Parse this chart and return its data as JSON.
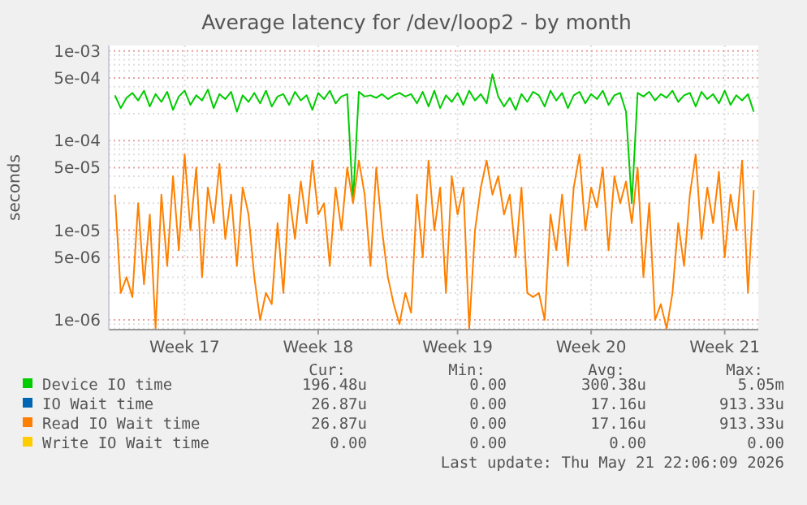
{
  "chart_data": {
    "type": "line",
    "title": "Average latency for /dev/loop2 - by month",
    "ylabel": "seconds",
    "log": "y",
    "grid": true,
    "legend": "bottom",
    "line_style": "solid",
    "ylim": [
      7.8e-07,
      0.00115
    ],
    "yticks": [
      {
        "value": 1e-06,
        "label": "1e-06"
      },
      {
        "value": 5e-06,
        "label": "5e-06"
      },
      {
        "value": 1e-05,
        "label": "1e-05"
      },
      {
        "value": 5e-05,
        "label": "5e-05"
      },
      {
        "value": 0.0001,
        "label": "1e-04"
      },
      {
        "value": 0.0005,
        "label": "5e-04"
      },
      {
        "value": 0.001,
        "label": "1e-03"
      }
    ],
    "categories": [
      null,
      null,
      null,
      null,
      null,
      null,
      null,
      null,
      null,
      null,
      null,
      null,
      "Week 17",
      null,
      null,
      null,
      null,
      null,
      null,
      null,
      null,
      null,
      null,
      null,
      null,
      null,
      null,
      null,
      null,
      null,
      null,
      null,
      null,
      null,
      null,
      "Week 18",
      null,
      null,
      null,
      null,
      null,
      null,
      null,
      null,
      null,
      null,
      null,
      null,
      null,
      null,
      null,
      null,
      null,
      null,
      null,
      null,
      null,
      null,
      null,
      "Week 19",
      null,
      null,
      null,
      null,
      null,
      null,
      null,
      null,
      null,
      null,
      null,
      null,
      null,
      null,
      null,
      null,
      null,
      null,
      null,
      null,
      null,
      null,
      "Week 20",
      null,
      null,
      null,
      null,
      null,
      null,
      null,
      null,
      null,
      null,
      null,
      null,
      null,
      null,
      null,
      null,
      null,
      null,
      null,
      null,
      null,
      null,
      "Week 21",
      null,
      null,
      null,
      null,
      null
    ],
    "series": [
      {
        "name": "Device IO time",
        "color": "#00cc00",
        "values": [
          0.00032,
          0.00023,
          0.0003,
          0.00034,
          0.00028,
          0.00036,
          0.00024,
          0.00033,
          0.00027,
          0.00035,
          0.00022,
          0.00031,
          0.00036,
          0.00025,
          0.00032,
          0.00028,
          0.00037,
          0.00023,
          0.00033,
          0.00029,
          0.00035,
          0.00021,
          0.00032,
          0.00027,
          0.00034,
          0.00026,
          0.00036,
          0.00024,
          0.00031,
          0.00033,
          0.00025,
          0.00035,
          0.00028,
          0.00032,
          0.00022,
          0.00034,
          0.00029,
          0.00036,
          0.00026,
          0.00031,
          0.00033,
          2.1e-05,
          0.00035,
          0.00031,
          0.00032,
          0.0003,
          0.00033,
          0.00029,
          0.00032,
          0.00034,
          0.00031,
          0.00033,
          0.00026,
          0.00035,
          0.00024,
          0.00036,
          0.00023,
          0.00032,
          0.00027,
          0.00034,
          0.00025,
          0.00036,
          0.00028,
          0.00033,
          0.00026,
          0.00055,
          0.00031,
          0.00024,
          0.0003,
          0.00022,
          0.00033,
          0.00027,
          0.00035,
          0.00032,
          0.00024,
          0.00036,
          0.00028,
          0.00034,
          0.00023,
          0.00032,
          0.00035,
          0.00026,
          0.00033,
          0.00029,
          0.00036,
          0.00025,
          0.00032,
          0.00034,
          0.00021,
          2e-05,
          0.00034,
          0.00031,
          0.00035,
          0.00028,
          0.00033,
          0.0003,
          0.00036,
          0.00027,
          0.00032,
          0.00034,
          0.00024,
          0.00035,
          0.00029,
          0.00033,
          0.00026,
          0.00036,
          0.00025,
          0.00032,
          0.00028,
          0.00033,
          0.00021
        ]
      },
      {
        "name": "IO Wait time",
        "color": "#0066b3",
        "values": [
          null,
          null,
          null,
          null,
          null,
          null,
          null,
          null,
          null,
          null,
          null,
          null,
          null,
          null,
          null,
          null,
          null,
          null,
          null,
          null,
          null,
          null,
          null,
          null,
          null,
          null,
          null,
          null,
          null,
          null,
          null,
          null,
          null,
          null,
          null,
          null,
          null,
          null,
          null,
          null,
          null,
          null,
          null,
          null,
          null,
          null,
          null,
          null,
          null,
          null,
          null,
          null,
          null,
          null,
          null,
          null,
          null,
          null,
          null,
          null,
          null,
          null,
          null,
          null,
          null,
          null,
          null,
          null,
          null,
          null,
          null,
          null,
          null,
          null,
          null,
          null,
          null,
          null,
          null,
          null,
          null,
          null,
          null,
          null,
          null,
          null,
          null,
          null,
          null,
          null,
          null,
          null,
          null,
          null,
          null,
          null,
          null,
          null,
          null,
          null,
          null,
          null,
          null,
          null,
          null,
          null,
          null,
          null,
          null,
          null,
          null
        ]
      },
      {
        "name": "Read IO Wait time",
        "color": "#ff8000",
        "values": [
          2.5e-05,
          2e-06,
          3e-06,
          1.8e-06,
          2e-05,
          2.5e-06,
          1.5e-05,
          8e-07,
          2.5e-05,
          4e-06,
          4e-05,
          6e-06,
          7e-05,
          1e-05,
          5e-05,
          3e-06,
          3e-05,
          1.2e-05,
          5.5e-05,
          8e-06,
          2.5e-05,
          4e-06,
          3e-05,
          1.5e-05,
          3e-06,
          1e-06,
          2e-06,
          1.5e-06,
          1.2e-05,
          2e-06,
          2.5e-05,
          8e-06,
          3.5e-05,
          1.2e-05,
          6e-05,
          1.5e-05,
          2e-05,
          4e-06,
          3e-05,
          1e-05,
          5e-05,
          2e-05,
          6e-05,
          2.5e-05,
          4e-06,
          5e-05,
          1e-05,
          3e-06,
          1.5e-06,
          9e-07,
          2e-06,
          1.2e-06,
          2.5e-05,
          5e-06,
          6e-05,
          1e-05,
          3e-05,
          2e-06,
          4e-05,
          1.5e-05,
          3e-05,
          8e-07,
          1e-05,
          3e-05,
          6e-05,
          2.5e-05,
          4e-05,
          1.5e-05,
          2.5e-05,
          5e-06,
          3e-05,
          2e-06,
          1.8e-06,
          2e-06,
          1e-06,
          1.5e-05,
          6e-06,
          2.5e-05,
          4e-06,
          3e-05,
          7e-05,
          1e-05,
          3e-05,
          1.8e-05,
          5e-05,
          6e-06,
          4e-05,
          2e-05,
          3.5e-05,
          1.2e-05,
          5e-05,
          3e-06,
          2e-05,
          1e-06,
          1.5e-06,
          8e-07,
          2e-06,
          1.2e-05,
          4e-06,
          2.5e-05,
          7e-05,
          8e-06,
          3e-05,
          1.2e-05,
          4.5e-05,
          5e-06,
          2.5e-05,
          1e-05,
          6e-05,
          2e-06,
          2.8e-05
        ]
      },
      {
        "name": "Write IO Wait time",
        "color": "#ffcc00",
        "values": [
          null,
          null,
          null,
          null,
          null,
          null,
          null,
          null,
          null,
          null,
          null,
          null,
          null,
          null,
          null,
          null,
          null,
          null,
          null,
          null,
          null,
          null,
          null,
          null,
          null,
          null,
          null,
          null,
          null,
          null,
          null,
          null,
          null,
          null,
          null,
          null,
          null,
          null,
          null,
          null,
          null,
          null,
          null,
          null,
          null,
          null,
          null,
          null,
          null,
          null,
          null,
          null,
          null,
          null,
          null,
          null,
          null,
          null,
          null,
          null,
          null,
          null,
          null,
          null,
          null,
          null,
          null,
          null,
          null,
          null,
          null,
          null,
          null,
          null,
          null,
          null,
          null,
          null,
          null,
          null,
          null,
          null,
          null,
          null,
          null,
          null,
          null,
          null,
          null,
          null,
          null,
          null,
          null,
          null,
          null,
          null,
          null,
          null,
          null,
          null,
          null,
          null,
          null,
          null,
          null,
          null,
          null,
          null,
          null,
          null,
          null
        ]
      }
    ],
    "annotations": [
      "Cur:",
      "Min:",
      "Avg:",
      "Max:",
      "196.48u",
      "0.00",
      "300.38u",
      "5.05m",
      "26.87u",
      "0.00",
      "17.16u",
      "913.33u",
      "26.87u",
      "0.00",
      "17.16u",
      "913.33u",
      "0.00",
      "0.00",
      "0.00",
      "0.00",
      "Last update: Thu May 21 22:06:09 2026"
    ]
  }
}
